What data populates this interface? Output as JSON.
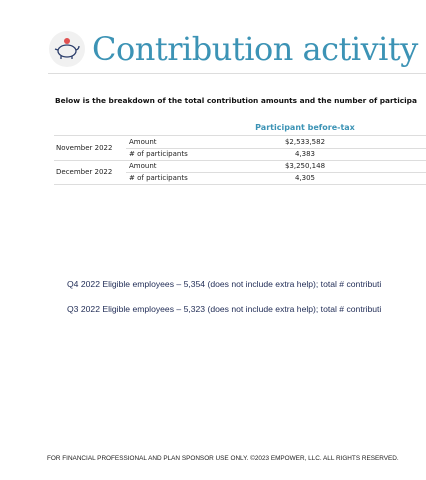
{
  "header": {
    "title": "Contribution activity"
  },
  "intro": "Below is the breakdown of the total contribution amounts and the number of participa",
  "table": {
    "column_header": "Participant before-tax",
    "groups": [
      {
        "period": "November 2022",
        "rows": [
          {
            "label": "Amount",
            "value": "$2,533,582"
          },
          {
            "label": "# of participants",
            "value": "4,383"
          }
        ]
      },
      {
        "period": "December 2022",
        "rows": [
          {
            "label": "Amount",
            "value": "$3,250,148"
          },
          {
            "label": "# of participants",
            "value": "4,305"
          }
        ]
      }
    ]
  },
  "notes": [
    "Q4 2022 Eligible employees – 5,354 (does not include extra help); total # contributi",
    "Q3 2022 Eligible employees – 5,323 (does not include extra help); total # contributi"
  ],
  "footer": "FOR FINANCIAL PROFESSIONAL AND PLAN SPONSOR USE ONLY. ©2023 EMPOWER, LLC. ALL RIGHTS RESERVED."
}
